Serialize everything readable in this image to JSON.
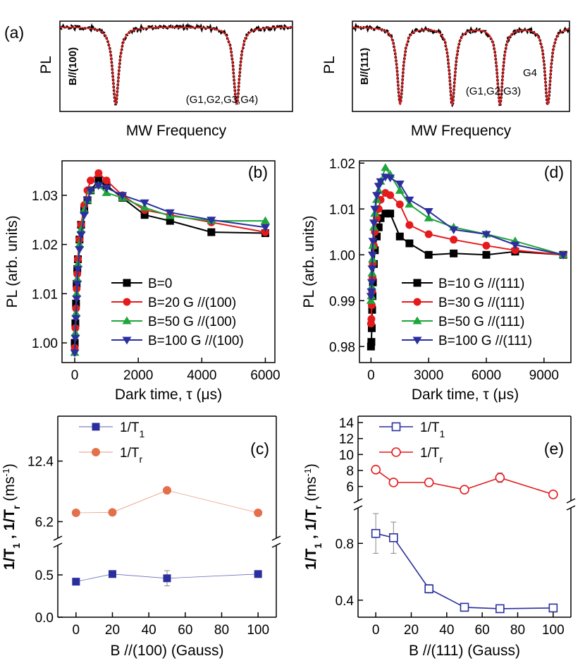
{
  "colors": {
    "black": "#000000",
    "red": "#e41a1c",
    "green": "#1fa53a",
    "blue": "#2b2f9e",
    "orange": "#e3704a",
    "blue_open": "#2b2f9e",
    "red_open": "#e41a1c"
  },
  "chart_data": [
    {
      "id": "a",
      "type": "line",
      "panel_label": "(a)",
      "xlabel": "MW Frequency",
      "ylabel": "PL",
      "inset_label": "B//(100)",
      "dip_annotation": "(G1,G2,G3,G4)",
      "dips": [
        0.24,
        0.76
      ],
      "grid": false
    },
    {
      "id": "a2",
      "type": "line",
      "panel_label": "",
      "xlabel": "MW Frequency",
      "ylabel": "PL",
      "inset_label": "B//(111)",
      "dip_annotation": "(G1,G2,G3)",
      "dip_annotation_2": "G4",
      "dips": [
        0.22,
        0.46,
        0.68,
        0.9
      ],
      "grid": false
    },
    {
      "id": "b",
      "type": "line",
      "panel_label": "(b)",
      "xlabel": "Dark time, τ (μs)",
      "ylabel": "PL (arb. units)",
      "xlim": [
        -400,
        6300
      ],
      "ylim": [
        0.996,
        1.037
      ],
      "xticks": [
        0,
        2000,
        4000,
        6000
      ],
      "xtick_labels": [
        "0",
        "2000",
        "4000",
        "6000"
      ],
      "yticks": [
        1.0,
        1.01,
        1.02,
        1.03
      ],
      "ytick_labels": [
        "1.00",
        "1.01",
        "1.02",
        "1.03"
      ],
      "legend_position": "bottom-right",
      "grid": false,
      "series": [
        {
          "name": "B=0",
          "color": "#000000",
          "marker": "square",
          "x": [
            0,
            20,
            40,
            60,
            80,
            100,
            150,
            200,
            300,
            400,
            500,
            750,
            1000,
            1500,
            2200,
            3000,
            4300,
            6000
          ],
          "y": [
            1.0,
            1.004,
            1.008,
            1.012,
            1.015,
            1.017,
            1.021,
            1.024,
            1.027,
            1.029,
            1.031,
            1.033,
            1.032,
            1.0295,
            1.026,
            1.0248,
            1.0225,
            1.0223
          ]
        },
        {
          "name": "B=20 G //(100)",
          "color": "#e41a1c",
          "marker": "circle",
          "x": [
            0,
            20,
            40,
            60,
            80,
            100,
            150,
            200,
            300,
            400,
            500,
            750,
            1000,
            1500,
            2200,
            3000,
            4300,
            6000
          ],
          "y": [
            0.999,
            1.003,
            1.007,
            1.011,
            1.014,
            1.017,
            1.021,
            1.024,
            1.028,
            1.031,
            1.033,
            1.0345,
            1.033,
            1.03,
            1.027,
            1.026,
            1.0245,
            1.0225
          ]
        },
        {
          "name": "B=50 G //(100)",
          "color": "#1fa53a",
          "marker": "triangle-up",
          "x": [
            0,
            20,
            40,
            60,
            80,
            100,
            150,
            200,
            300,
            400,
            500,
            750,
            1000,
            1500,
            2200,
            3000,
            4300,
            6000
          ],
          "y": [
            0.998,
            1.002,
            1.006,
            1.01,
            1.013,
            1.016,
            1.02,
            1.023,
            1.027,
            1.029,
            1.031,
            1.032,
            1.0305,
            1.0295,
            1.0275,
            1.0258,
            1.0248,
            1.0248
          ]
        },
        {
          "name": "B=100 G //(100)",
          "color": "#2b2f9e",
          "marker": "triangle-down",
          "x": [
            0,
            20,
            40,
            60,
            80,
            100,
            150,
            200,
            300,
            400,
            500,
            750,
            1000,
            1500,
            2200,
            3000,
            4300,
            6000
          ],
          "y": [
            0.998,
            1.001,
            1.005,
            1.009,
            1.012,
            1.015,
            1.019,
            1.022,
            1.026,
            1.029,
            1.031,
            1.032,
            1.0315,
            1.03,
            1.0285,
            1.0265,
            1.025,
            1.0235
          ]
        }
      ]
    },
    {
      "id": "d",
      "type": "line",
      "panel_label": "(d)",
      "xlabel": "Dark time, τ (μs)",
      "ylabel": "PL (arb. units)",
      "xlim": [
        -600,
        10400
      ],
      "ylim": [
        0.9765,
        1.0205
      ],
      "xticks": [
        0,
        3000,
        6000,
        9000
      ],
      "xtick_labels": [
        "0",
        "3000",
        "6000",
        "9000"
      ],
      "yticks": [
        0.98,
        0.99,
        1.0,
        1.01,
        1.02
      ],
      "ytick_labels": [
        "0.98",
        "0.99",
        "1.00",
        "1.01",
        "1.02"
      ],
      "legend_position": "bottom-right",
      "grid": false,
      "series": [
        {
          "name": "B=10 G //(111)",
          "color": "#000000",
          "marker": "square",
          "x": [
            0,
            20,
            40,
            60,
            80,
            100,
            150,
            200,
            300,
            400,
            500,
            750,
            1000,
            1500,
            2000,
            3000,
            4300,
            6000,
            7500,
            10000
          ],
          "y": [
            0.98,
            0.981,
            0.984,
            0.988,
            0.991,
            0.994,
            0.998,
            1.001,
            1.004,
            1.006,
            1.008,
            1.009,
            1.009,
            1.004,
            1.0025,
            1.0,
            1.0003,
            1.0,
            1.0007,
            1.0
          ]
        },
        {
          "name": "B=30 G //(111)",
          "color": "#e41a1c",
          "marker": "circle",
          "x": [
            0,
            20,
            40,
            60,
            80,
            100,
            150,
            200,
            300,
            400,
            500,
            750,
            1000,
            1500,
            2000,
            3000,
            4300,
            6000,
            7500,
            10000
          ],
          "y": [
            0.985,
            0.986,
            0.989,
            0.992,
            0.995,
            0.998,
            1.002,
            1.005,
            1.008,
            1.01,
            1.012,
            1.0135,
            1.013,
            1.011,
            1.0065,
            1.0045,
            1.0033,
            1.002,
            1.001,
            1.0
          ]
        },
        {
          "name": "B=50 G //(111)",
          "color": "#1fa53a",
          "marker": "triangle-up",
          "x": [
            0,
            20,
            40,
            60,
            80,
            100,
            150,
            200,
            300,
            400,
            500,
            750,
            1000,
            1500,
            2000,
            3000,
            4300,
            6000,
            7500,
            10000
          ],
          "y": [
            0.99,
            0.991,
            0.993,
            0.996,
            0.999,
            1.002,
            1.006,
            1.009,
            1.012,
            1.014,
            1.016,
            1.019,
            1.0175,
            1.014,
            1.011,
            1.008,
            1.006,
            1.0045,
            1.003,
            1.0
          ]
        },
        {
          "name": "B=100 G //(111)",
          "color": "#2b2f9e",
          "marker": "triangle-down",
          "x": [
            0,
            20,
            40,
            60,
            80,
            100,
            150,
            200,
            300,
            400,
            500,
            750,
            1000,
            1500,
            2000,
            3000,
            4300,
            6000,
            7500,
            10000
          ],
          "y": [
            0.991,
            0.992,
            0.994,
            0.997,
            1.0,
            1.003,
            1.007,
            1.01,
            1.013,
            1.015,
            1.016,
            1.017,
            1.0168,
            1.0155,
            1.012,
            1.0095,
            1.0055,
            1.0045,
            1.0022,
            1.0
          ]
        }
      ]
    },
    {
      "id": "c",
      "type": "scatter",
      "panel_label": "(c)",
      "xlabel": "B //(100) (Gauss)",
      "ylabel": "1/T1 , 1/Tr (ms-1)",
      "ylabel_parts": [
        "1/T",
        "1",
        " , 1/T",
        "r",
        " (ms",
        "-1",
        ")"
      ],
      "broken_axis": true,
      "xlim": [
        -10,
        110
      ],
      "xticks": [
        0,
        20,
        40,
        60,
        80,
        100
      ],
      "xtick_labels": [
        "0",
        "20",
        "40",
        "60",
        "80",
        "100"
      ],
      "upper_ylim": [
        4.5,
        17.0
      ],
      "upper_yticks": [
        6.2,
        12.4
      ],
      "upper_ytick_labels": [
        "6.2",
        "12.4"
      ],
      "lower_ylim": [
        0.0,
        0.85
      ],
      "lower_yticks": [
        0.0,
        0.5
      ],
      "lower_ytick_labels": [
        "0.0",
        "0.5"
      ],
      "legend_position": "top-left",
      "grid": false,
      "series": [
        {
          "name": "1/T1",
          "name_main": "1/T",
          "name_sub": "1",
          "color": "#2b2f9e",
          "marker": "filled-square",
          "axis": "lower",
          "x": [
            0,
            20,
            50,
            100
          ],
          "y": [
            0.42,
            0.51,
            0.46,
            0.51
          ],
          "err": [
            0.0,
            0.03,
            0.09,
            0.04
          ]
        },
        {
          "name": "1/Tr",
          "name_main": "1/T",
          "name_sub": "r",
          "color": "#e3704a",
          "marker": "filled-circle",
          "axis": "upper",
          "x": [
            0,
            20,
            50,
            100
          ],
          "y": [
            7.1,
            7.15,
            9.4,
            7.1
          ],
          "err": [
            0,
            0,
            0,
            0
          ]
        }
      ]
    },
    {
      "id": "e",
      "type": "scatter",
      "panel_label": "(e)",
      "xlabel": "B //(111) (Gauss)",
      "ylabel": "1/T1 , 1/Tr (ms-1)",
      "ylabel_parts": [
        "1/T",
        "1",
        " , 1/T",
        "r",
        " (ms",
        "-1",
        ")"
      ],
      "broken_axis": true,
      "xlim": [
        -10,
        110
      ],
      "xticks": [
        0,
        20,
        40,
        60,
        80,
        100
      ],
      "xtick_labels": [
        "0",
        "20",
        "40",
        "60",
        "80",
        "100"
      ],
      "upper_ylim": [
        4.2,
        14.8
      ],
      "upper_yticks": [
        6,
        8,
        10,
        12,
        14
      ],
      "upper_ytick_labels": [
        "6",
        "8",
        "10",
        "12",
        "14"
      ],
      "lower_ylim": [
        0.28,
        1.05
      ],
      "lower_yticks": [
        0.4,
        0.8
      ],
      "lower_ytick_labels": [
        "0.4",
        "0.8"
      ],
      "legend_position": "top-left",
      "grid": false,
      "series": [
        {
          "name": "1/T1",
          "name_main": "1/T",
          "name_sub": "1",
          "color": "#2b2f9e",
          "marker": "open-square",
          "axis": "lower",
          "x": [
            0,
            10,
            30,
            50,
            70,
            100
          ],
          "y": [
            0.87,
            0.84,
            0.48,
            0.35,
            0.34,
            0.345
          ],
          "err": [
            0.14,
            0.11,
            0.03,
            0.01,
            0.01,
            0.01
          ]
        },
        {
          "name": "1/Tr",
          "name_main": "1/T",
          "name_sub": "r",
          "color": "#e41a1c",
          "marker": "open-circle",
          "axis": "upper",
          "x": [
            0,
            10,
            30,
            50,
            70,
            100
          ],
          "y": [
            8.1,
            6.5,
            6.5,
            5.6,
            7.1,
            5.0
          ],
          "err": [
            0.4,
            0.2,
            0.5,
            0.2,
            0.6,
            0.2
          ]
        }
      ]
    }
  ]
}
